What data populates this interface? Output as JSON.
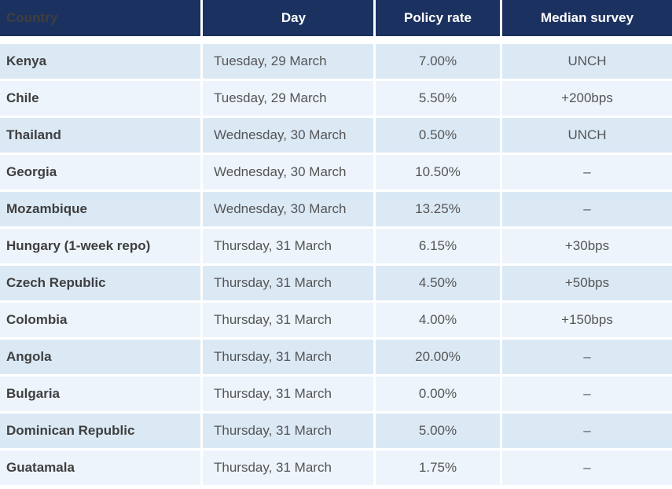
{
  "table": {
    "headers": [
      "Country",
      "Day",
      "Policy rate",
      "Median survey"
    ],
    "rows": [
      [
        "Kenya",
        "Tuesday, 29 March",
        "7.00%",
        "UNCH"
      ],
      [
        "Chile",
        "Tuesday, 29 March",
        "5.50%",
        "+200bps"
      ],
      [
        "Thailand",
        "Wednesday, 30 March",
        "0.50%",
        "UNCH"
      ],
      [
        "Georgia",
        "Wednesday, 30 March",
        "10.50%",
        "–"
      ],
      [
        "Mozambique",
        "Wednesday, 30 March",
        "13.25%",
        "–"
      ],
      [
        "Hungary (1-week repo)",
        "Thursday, 31 March",
        "6.15%",
        "+30bps"
      ],
      [
        "Czech Republic",
        "Thursday, 31 March",
        "4.50%",
        "+50bps"
      ],
      [
        "Colombia",
        "Thursday, 31 March",
        "4.00%",
        "+150bps"
      ],
      [
        "Angola",
        "Thursday, 31 March",
        "20.00%",
        "–"
      ],
      [
        "Bulgaria",
        "Thursday, 31 March",
        "0.00%",
        "–"
      ],
      [
        "Dominican Republic",
        "Thursday, 31 March",
        "5.00%",
        "–"
      ],
      [
        "Guatamala",
        "Thursday, 31 March",
        "1.75%",
        "–"
      ]
    ]
  }
}
